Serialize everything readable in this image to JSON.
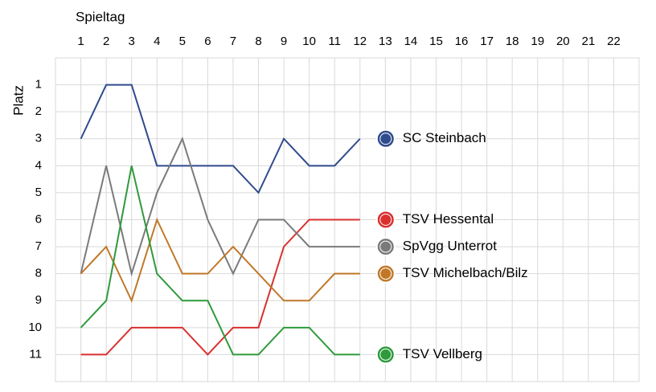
{
  "chart_data": {
    "type": "line",
    "x_label": "Spieltag",
    "y_label": "Platz",
    "x": [
      1,
      2,
      3,
      4,
      5,
      6,
      7,
      8,
      9,
      10,
      11,
      12
    ],
    "xlim": [
      0,
      23
    ],
    "xticks": [
      1,
      2,
      3,
      4,
      5,
      6,
      7,
      8,
      9,
      10,
      11,
      12,
      13,
      14,
      15,
      16,
      17,
      18,
      19,
      20,
      21,
      22
    ],
    "ylim": [
      12,
      0
    ],
    "yticks": [
      1,
      2,
      3,
      4,
      5,
      6,
      7,
      8,
      9,
      10,
      11
    ],
    "y_inverted": true,
    "grid": true,
    "series": [
      {
        "name": "SC Steinbach",
        "color": "#2f4b8c",
        "values": [
          3,
          1,
          1,
          4,
          4,
          4,
          4,
          5,
          3,
          4,
          4,
          3
        ]
      },
      {
        "name": "TSV Hessental",
        "color": "#d9302f",
        "values": [
          11,
          11,
          10,
          10,
          10,
          11,
          10,
          10,
          7,
          6,
          6,
          6
        ]
      },
      {
        "name": "SpVgg Unterrot",
        "color": "#7a7a7a",
        "values": [
          8,
          4,
          8,
          5,
          3,
          6,
          8,
          6,
          6,
          7,
          7,
          7
        ]
      },
      {
        "name": "TSV Michelbach/Bilz",
        "color": "#c07828",
        "values": [
          8,
          7,
          9,
          6,
          8,
          8,
          7,
          8,
          9,
          9,
          8,
          8
        ]
      },
      {
        "name": "TSV Vellberg",
        "color": "#2e9a3c",
        "values": [
          10,
          9,
          4,
          8,
          9,
          9,
          11,
          11,
          10,
          10,
          11,
          11
        ]
      }
    ]
  }
}
